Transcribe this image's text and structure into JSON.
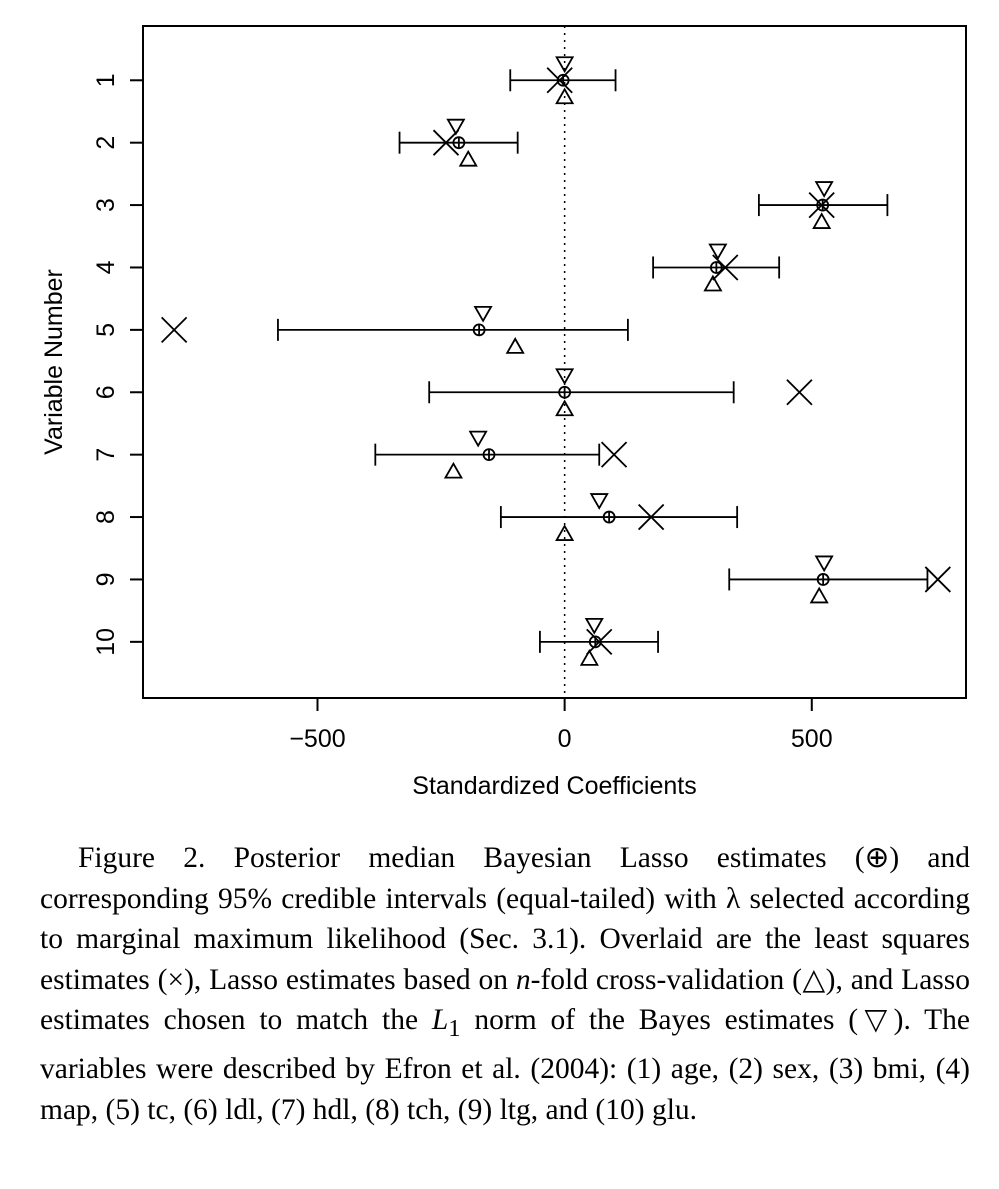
{
  "chart_data": {
    "type": "scatter",
    "xlabel": "Standardized Coefficients",
    "ylabel": "Variable Number",
    "xlim": [
      -853,
      812
    ],
    "ylim": [
      0.13,
      10.9
    ],
    "y_reversed": true,
    "x_ticks": [
      -500,
      0,
      500
    ],
    "x_tick_labels": [
      "−500",
      "0",
      "500"
    ],
    "y_ticks": [
      1,
      2,
      3,
      4,
      5,
      6,
      7,
      8,
      9,
      10
    ],
    "y_tick_labels": [
      "1",
      "2",
      "3",
      "4",
      "5",
      "6",
      "7",
      "8",
      "9",
      "10"
    ],
    "reference_line": {
      "x": 0,
      "style": "dotted"
    },
    "grid": false,
    "legend": "none",
    "variables": [
      1,
      2,
      3,
      4,
      5,
      6,
      7,
      8,
      9,
      10
    ],
    "bayesian_lasso_median": [
      -3,
      -214,
      522,
      307,
      -173,
      0,
      -153,
      90,
      523,
      62
    ],
    "ci_lower": [
      -110,
      -334,
      393,
      179,
      -580,
      -274,
      -383,
      -129,
      333,
      -50
    ],
    "ci_upper": [
      103,
      -95,
      653,
      434,
      128,
      342,
      70,
      349,
      734,
      189
    ],
    "least_squares": [
      -10,
      -240,
      520,
      325,
      -790,
      475,
      100,
      175,
      755,
      70
    ],
    "lasso_cv": [
      0,
      -195,
      520,
      300,
      -100,
      0,
      -225,
      0,
      515,
      50
    ],
    "lasso_l1_match": [
      0,
      -220,
      525,
      310,
      -165,
      0,
      -175,
      70,
      525,
      60
    ]
  },
  "caption": {
    "prefix": "Figure 2.  Posterior median Bayesian Lasso estimates (⊕) and corresponding 95% credible intervals (equal-tailed) with λ selected according to marginal maximum likelihood (Sec. 3.1). Overlaid are the least squares estimates (×), Lasso estimates based on ",
    "n_symbol": "n",
    "middle": "-fold cross-validation (△), and Lasso estimates chosen to match the ",
    "norm_symbol": "L",
    "norm_subscript": "1",
    "suffix": " norm of the Bayes estimates (▽). The variables were described by Efron et al. (2004): (1) age, (2) sex, (3) bmi, (4) map, (5) tc, (6) ldl, (7) hdl, (8) tch, (9) ltg, and (10) glu."
  }
}
